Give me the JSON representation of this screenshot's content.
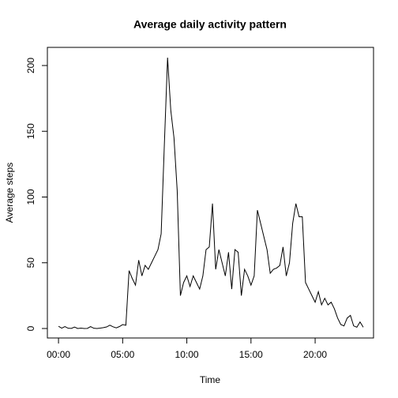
{
  "chart_data": {
    "type": "line",
    "title": "Average daily activity pattern",
    "x_label": "Time",
    "y_label": "Average steps",
    "x": [
      0,
      15,
      30,
      45,
      60,
      75,
      90,
      105,
      120,
      135,
      150,
      165,
      180,
      195,
      210,
      225,
      240,
      255,
      270,
      285,
      300,
      315,
      330,
      345,
      360,
      375,
      390,
      405,
      420,
      435,
      450,
      465,
      480,
      495,
      510,
      525,
      540,
      555,
      570,
      585,
      600,
      615,
      630,
      645,
      660,
      675,
      690,
      705,
      720,
      735,
      750,
      765,
      780,
      795,
      810,
      825,
      840,
      855,
      870,
      885,
      900,
      915,
      930,
      945,
      960,
      975,
      990,
      1005,
      1020,
      1035,
      1050,
      1065,
      1080,
      1095,
      1110,
      1125,
      1140,
      1155,
      1170,
      1185,
      1200,
      1215,
      1230,
      1245,
      1260,
      1275,
      1290,
      1305,
      1320,
      1335,
      1350,
      1365,
      1380,
      1395,
      1410,
      1425
    ],
    "series": [
      {
        "name": "Average steps",
        "color": "#000000",
        "values": [
          1.7,
          0.3,
          1.5,
          0.2,
          0.1,
          1.1,
          0,
          0.3,
          0,
          0.1,
          1.5,
          0.2,
          0,
          0.3,
          0.7,
          1.2,
          2.5,
          1.3,
          0.5,
          1.5,
          3,
          2.5,
          44,
          38,
          33,
          52,
          40,
          48,
          45,
          50,
          55,
          60,
          72,
          140,
          206,
          166,
          145,
          105,
          25,
          35,
          40,
          32,
          40,
          35,
          30,
          40,
          60,
          62,
          95,
          45,
          60,
          50,
          40,
          58,
          30,
          60,
          58,
          25,
          45,
          40,
          33,
          40,
          90,
          80,
          70,
          60,
          42,
          45,
          46,
          48,
          62,
          40,
          50,
          80,
          95,
          85,
          85,
          35,
          30,
          25,
          20,
          28,
          18,
          23,
          18,
          20,
          15,
          8,
          3,
          2,
          8,
          10,
          2,
          1,
          5,
          1
        ]
      }
    ],
    "xlim": [
      -52,
      1473
    ],
    "ylim": [
      -7.2,
      213.8
    ],
    "xticks": [
      {
        "value": 0,
        "label": "00:00"
      },
      {
        "value": 300,
        "label": "05:00"
      },
      {
        "value": 600,
        "label": "10:00"
      },
      {
        "value": 900,
        "label": "15:00"
      },
      {
        "value": 1200,
        "label": "20:00"
      }
    ],
    "yticks": [
      0,
      50,
      100,
      150,
      200
    ]
  }
}
